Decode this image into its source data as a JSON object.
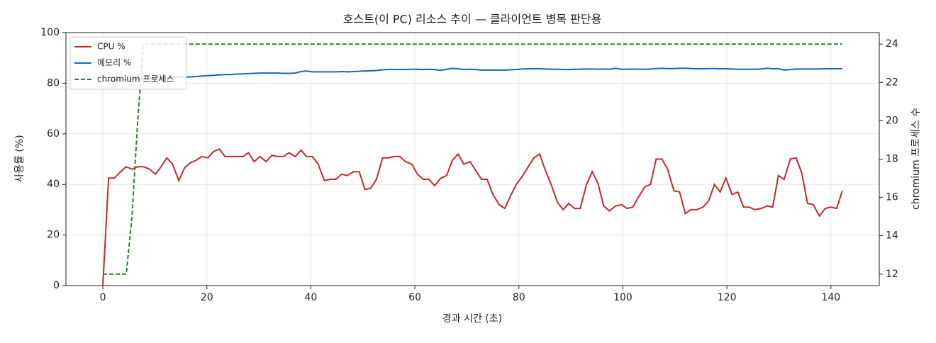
{
  "chart_data": {
    "type": "line",
    "title": "호스트(이 PC) 리소스 추이 — 클라이언트 병목 판단용",
    "x_label": "경과 시간 (초)",
    "y_label": "사용률 (%)",
    "y2_label": "chromium 프로세스 수",
    "xlim": [
      -7.1,
      149.3
    ],
    "ylim": [
      0,
      100
    ],
    "y2lim": [
      11.4,
      24.6
    ],
    "xticks": [
      0,
      20,
      40,
      60,
      80,
      100,
      120,
      140
    ],
    "yticks": [
      0,
      20,
      40,
      60,
      80,
      100
    ],
    "y2ticks": [
      12,
      14,
      16,
      18,
      20,
      22,
      24
    ],
    "grid": true,
    "legend": "upper left",
    "x": [
      0,
      1.1,
      2.2,
      3.4,
      4.5,
      5.6,
      6.7,
      7.8,
      9,
      10.1,
      11.2,
      12.3,
      13.4,
      14.6,
      15.7,
      16.8,
      17.9,
      19,
      20.2,
      21.3,
      22.4,
      23.5,
      24.6,
      25.8,
      26.9,
      28,
      29.1,
      30.2,
      31.4,
      32.5,
      33.6,
      34.7,
      35.8,
      37,
      38.1,
      39.2,
      40.3,
      41.4,
      42.6,
      43.7,
      44.8,
      45.9,
      47,
      48.2,
      49.3,
      50.4,
      51.5,
      52.6,
      53.8,
      54.9,
      56,
      57.1,
      58.2,
      59.4,
      60.5,
      61.6,
      62.7,
      63.8,
      65,
      66.1,
      67.2,
      68.3,
      69.4,
      70.6,
      71.7,
      72.8,
      73.9,
      75,
      76.2,
      77.3,
      78.4,
      79.5,
      80.6,
      81.8,
      82.9,
      84,
      85.1,
      86.2,
      87.4,
      88.5,
      89.6,
      90.7,
      91.8,
      93,
      94.1,
      95.2,
      96.3,
      97.4,
      98.6,
      99.7,
      100.8,
      101.9,
      103,
      104.2,
      105.3,
      106.4,
      107.5,
      108.6,
      109.8,
      110.9,
      112,
      113.1,
      114.2,
      115.4,
      116.5,
      117.6,
      118.7,
      119.8,
      121,
      122.1,
      123.2,
      124.3,
      125.4,
      126.6,
      127.7,
      128.8,
      129.9,
      131,
      132.2,
      133.3,
      134.4,
      135.5,
      136.6,
      137.8,
      138.9,
      140,
      141.1,
      142.2
    ],
    "series": [
      {
        "name": "CPU %",
        "color": "#c62828",
        "dash": false,
        "axis": "y",
        "values": [
          0,
          42.5,
          42.5,
          45,
          47,
          46,
          47,
          47,
          46,
          44,
          47,
          50.5,
          48,
          41.5,
          46.5,
          48.5,
          49.5,
          51,
          50.5,
          53,
          54,
          51,
          51,
          51,
          51,
          52.5,
          49,
          51,
          49,
          51.5,
          51,
          51,
          52.5,
          51,
          53.5,
          51,
          51,
          48,
          41.5,
          42,
          42,
          44,
          43.5,
          45,
          45,
          38,
          38.5,
          42,
          50.5,
          50.5,
          51,
          51,
          49,
          48,
          44,
          42,
          42,
          39.5,
          42.5,
          43.5,
          49.5,
          52,
          48,
          49,
          45.5,
          42,
          42,
          36,
          32,
          30.5,
          35.5,
          40,
          43,
          47,
          50.5,
          52,
          45.5,
          40,
          33,
          30,
          32.5,
          30.5,
          30.5,
          40,
          45,
          40.5,
          31.5,
          29.5,
          31.5,
          32,
          30.5,
          31,
          35,
          39,
          40,
          50,
          50,
          46,
          37.5,
          37,
          28.5,
          30,
          30,
          31,
          33.5,
          40,
          37,
          42.5,
          36,
          37,
          31,
          31,
          30,
          30.5,
          31.5,
          31,
          43.5,
          42,
          50,
          50.5,
          44.5,
          32.5,
          32,
          27.5,
          30.5,
          31,
          30.5,
          37.5
        ]
      },
      {
        "name": "메모리 %",
        "color": "#1565c0",
        "dash": false,
        "axis": "y",
        "values": [
          81,
          81,
          81.2,
          81.3,
          81.5,
          81.5,
          81.6,
          81.8,
          82,
          82,
          82.1,
          82.2,
          82.3,
          82.4,
          82.5,
          82.5,
          82.6,
          82.8,
          83,
          83.1,
          83.3,
          83.4,
          83.4,
          83.6,
          83.7,
          83.8,
          83.9,
          84,
          84,
          84,
          84,
          83.9,
          83.9,
          84,
          84.6,
          84.8,
          84.5,
          84.5,
          84.5,
          84.5,
          84.5,
          84.6,
          84.5,
          84.6,
          84.7,
          84.8,
          84.9,
          85,
          85.3,
          85.4,
          85.4,
          85.4,
          85.4,
          85.5,
          85.5,
          85.4,
          85.5,
          85.4,
          85.1,
          85.5,
          85.9,
          85.7,
          85.4,
          85.5,
          85.4,
          85.2,
          85.2,
          85.2,
          85.2,
          85.2,
          85.3,
          85.4,
          85.6,
          85.7,
          85.7,
          85.7,
          85.6,
          85.5,
          85.5,
          85.4,
          85.4,
          85.5,
          85.5,
          85.6,
          85.6,
          85.5,
          85.6,
          85.5,
          85.9,
          85.5,
          85.5,
          85.6,
          85.5,
          85.5,
          85.6,
          85.8,
          85.9,
          85.8,
          85.8,
          85.9,
          85.9,
          85.8,
          85.7,
          85.7,
          85.8,
          85.8,
          85.7,
          85.7,
          85.6,
          85.5,
          85.5,
          85.5,
          85.5,
          85.6,
          85.9,
          85.7,
          85.7,
          85.2,
          85.4,
          85.6,
          85.6,
          85.6,
          85.6,
          85.6,
          85.7,
          85.7,
          85.7,
          85.8
        ]
      },
      {
        "name": "chromium 프로세스",
        "color": "#2e7d32",
        "dash": true,
        "axis": "y2",
        "x": [
          0,
          4.5,
          5.6,
          6.7,
          7.8,
          142.2
        ],
        "values": [
          12,
          12,
          15,
          20,
          24,
          24
        ]
      }
    ]
  }
}
